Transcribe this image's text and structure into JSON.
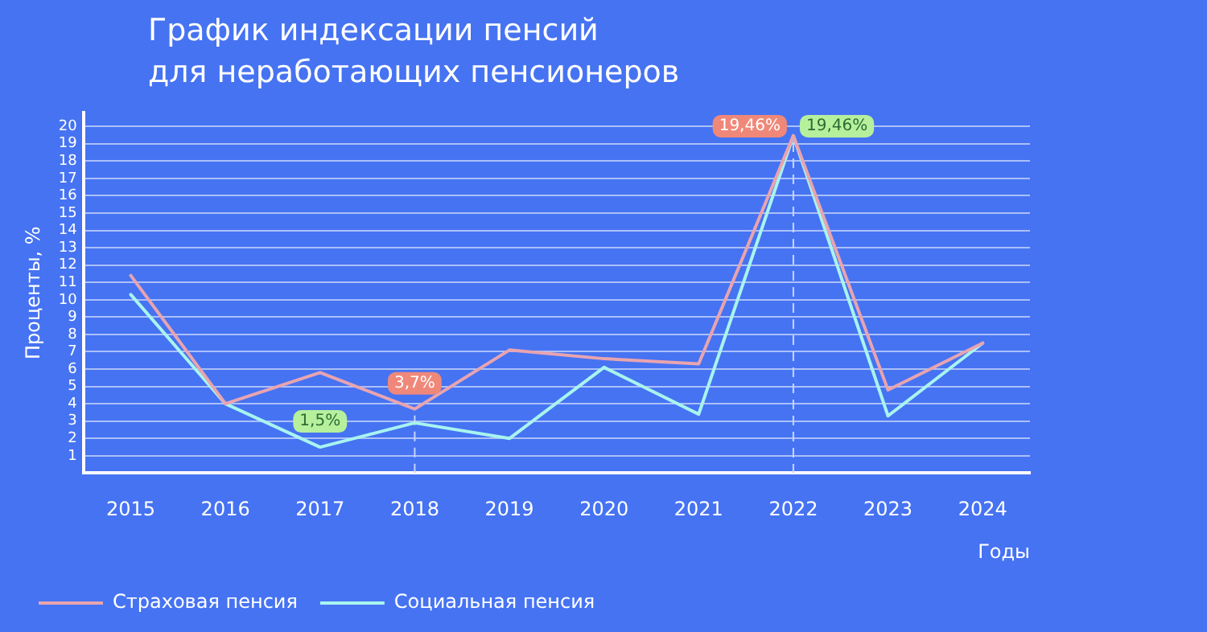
{
  "chart_data": {
    "type": "line",
    "title": "График индексации пенсий\nдля неработающих пенсионеров",
    "xlabel": "Годы",
    "ylabel": "Проценты, %",
    "categories": [
      "2015",
      "2016",
      "2017",
      "2018",
      "2019",
      "2020",
      "2021",
      "2022",
      "2023",
      "2024"
    ],
    "series": [
      {
        "name": "Страховая пенсия",
        "color": "#e8a4b0",
        "values": [
          11.4,
          4.0,
          5.8,
          3.7,
          7.1,
          6.6,
          6.3,
          19.46,
          4.8,
          7.5
        ],
        "value_labels": [
          null,
          null,
          null,
          "3,7%",
          null,
          null,
          null,
          "19,46%",
          null,
          null
        ]
      },
      {
        "name": "Социальная пенсия",
        "color": "#a8f4f0",
        "values": [
          10.3,
          4.0,
          1.5,
          2.9,
          2.0,
          6.1,
          3.4,
          19.46,
          3.3,
          7.5
        ],
        "value_labels": [
          null,
          null,
          "1,5%",
          null,
          null,
          null,
          null,
          "19,46%",
          null,
          null
        ]
      }
    ],
    "ylim": [
      0,
      20.8
    ],
    "yticks": [
      1,
      2,
      3,
      4,
      5,
      6,
      7,
      8,
      9,
      10,
      11,
      12,
      13,
      14,
      15,
      16,
      17,
      18,
      19,
      20
    ],
    "ref_lines": [
      {
        "axis": "x",
        "value": "2018",
        "line_style": "dashed",
        "color": "#c8d4ff"
      },
      {
        "axis": "x",
        "value": "2022",
        "line_style": "dashed",
        "color": "#c8d4ff"
      }
    ],
    "grid": "y",
    "legend": "bottom",
    "marker": "none",
    "line_style": "solid"
  }
}
